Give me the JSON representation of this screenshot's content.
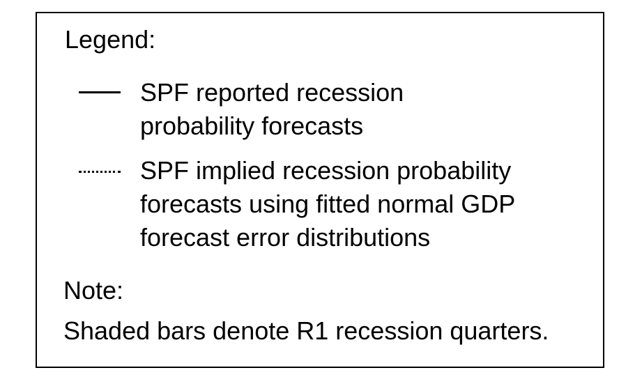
{
  "chart_data": {
    "type": "legend",
    "legend": {
      "heading": "Legend:",
      "entries": [
        {
          "line_style": "solid",
          "color": "#000000",
          "label_lines": [
            "SPF reported recession",
            "probability forecasts"
          ]
        },
        {
          "line_style": "dotted",
          "color": "#000000",
          "label_lines": [
            "SPF implied recession probability",
            "forecasts using fitted normal GDP",
            "forecast error distributions"
          ]
        }
      ]
    },
    "note": {
      "heading": "Note:",
      "text": "Shaded bars denote R1 recession quarters."
    }
  }
}
